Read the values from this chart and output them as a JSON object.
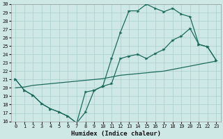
{
  "xlabel": "Humidex (Indice chaleur)",
  "bg_color": "#cde8e5",
  "line_color": "#1e6b5e",
  "grid_color": "#aacfcc",
  "xlim": [
    -0.5,
    23.5
  ],
  "ylim": [
    16,
    30
  ],
  "xticks": [
    0,
    1,
    2,
    3,
    4,
    5,
    6,
    7,
    8,
    9,
    10,
    11,
    12,
    13,
    14,
    15,
    16,
    17,
    18,
    19,
    20,
    21,
    22,
    23
  ],
  "yticks": [
    16,
    17,
    18,
    19,
    20,
    21,
    22,
    23,
    24,
    25,
    26,
    27,
    28,
    29,
    30
  ],
  "line1_x": [
    0,
    1,
    2,
    3,
    4,
    5,
    6,
    7,
    8,
    9,
    10,
    11,
    12,
    13,
    14,
    15,
    16,
    17,
    18,
    19,
    20,
    21,
    22,
    23
  ],
  "line1_y": [
    21.0,
    19.7,
    19.1,
    18.1,
    17.5,
    17.1,
    16.6,
    15.8,
    19.5,
    19.7,
    20.2,
    20.5,
    23.5,
    23.8,
    24.0,
    23.5,
    24.1,
    24.6,
    25.7,
    26.2,
    27.1,
    25.2,
    24.9,
    23.3
  ],
  "line2_x": [
    0,
    1,
    2,
    3,
    4,
    5,
    6,
    7,
    8,
    9,
    10,
    11,
    12,
    13,
    14,
    15,
    16,
    17,
    18,
    19,
    20,
    21,
    22,
    23
  ],
  "line2_y": [
    21.0,
    19.7,
    19.1,
    18.1,
    17.5,
    17.1,
    16.6,
    15.8,
    17.1,
    19.7,
    20.2,
    23.5,
    26.6,
    29.2,
    29.2,
    30.0,
    29.5,
    29.1,
    29.5,
    28.8,
    28.5,
    25.2,
    24.9,
    23.3
  ],
  "line3_x": [
    0,
    1,
    2,
    3,
    4,
    5,
    6,
    7,
    8,
    9,
    10,
    11,
    12,
    13,
    14,
    15,
    16,
    17,
    18,
    19,
    20,
    21,
    22,
    23
  ],
  "line3_y": [
    20.0,
    20.1,
    20.3,
    20.4,
    20.5,
    20.6,
    20.7,
    20.8,
    20.9,
    21.0,
    21.1,
    21.3,
    21.5,
    21.6,
    21.7,
    21.8,
    21.9,
    22.0,
    22.2,
    22.4,
    22.6,
    22.8,
    23.0,
    23.2
  ],
  "xlabel_fontsize": 6.5,
  "tick_fontsize": 5.0
}
